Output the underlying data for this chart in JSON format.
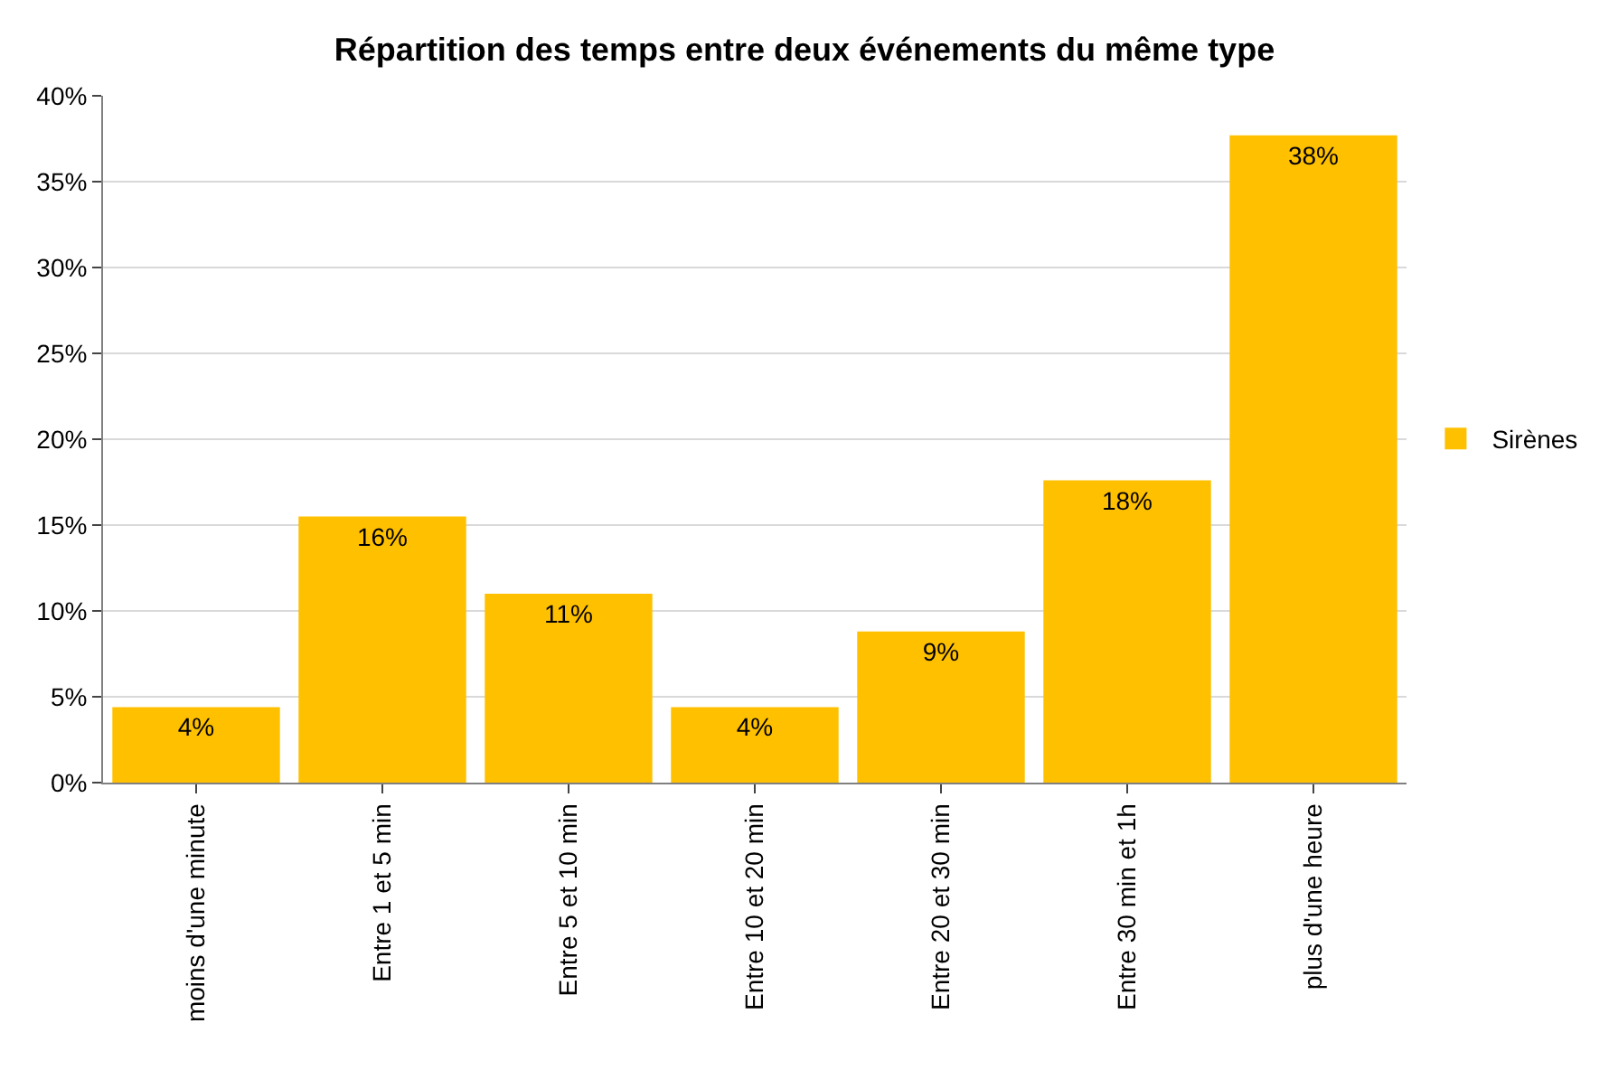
{
  "chart_data": {
    "type": "bar",
    "title": "Répartition des temps entre deux événements du même type",
    "categories": [
      "moins d'une minute",
      "Entre 1 et 5 min",
      "Entre 5 et 10 min",
      "Entre 10 et 20 min",
      "Entre 20 et 30 min",
      "Entre 30 min et 1h",
      "plus d'une heure"
    ],
    "series": [
      {
        "name": "Sirènes",
        "color": "#ffc000",
        "values": [
          4.4,
          15.5,
          11.0,
          4.4,
          8.8,
          17.6,
          37.7
        ],
        "value_labels": [
          "4%",
          "16%",
          "11%",
          "4%",
          "9%",
          "18%",
          "38%"
        ]
      }
    ],
    "ylim": [
      0,
      40
    ],
    "yticks": [
      {
        "value": 0,
        "label": "0%"
      },
      {
        "value": 5,
        "label": "5%"
      },
      {
        "value": 10,
        "label": "10%"
      },
      {
        "value": 15,
        "label": "15%"
      },
      {
        "value": 20,
        "label": "20%"
      },
      {
        "value": 25,
        "label": "25%"
      },
      {
        "value": 30,
        "label": "30%"
      },
      {
        "value": 35,
        "label": "35%"
      },
      {
        "value": 40,
        "label": "40%"
      }
    ],
    "grid": "y",
    "legend": "right"
  }
}
